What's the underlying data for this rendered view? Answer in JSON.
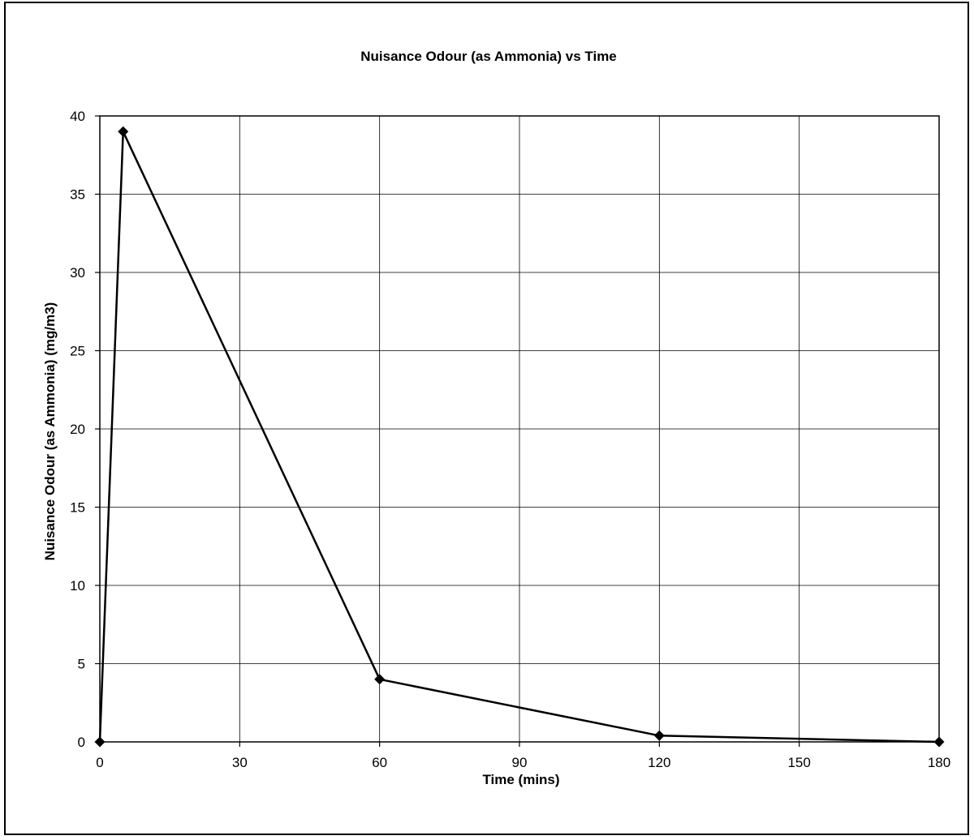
{
  "chart_data": {
    "type": "line",
    "title": "Nuisance Odour (as Ammonia) vs Time",
    "xlabel": "Time (mins)",
    "ylabel": "Nuisance Odour (as Ammonia) (mg/m3)",
    "xlim": [
      0,
      180
    ],
    "ylim": [
      0,
      40
    ],
    "xticks": [
      0,
      30,
      60,
      90,
      120,
      150,
      180
    ],
    "yticks": [
      0,
      5,
      10,
      15,
      20,
      25,
      30,
      35,
      40
    ],
    "xtick_labels": [
      "0",
      "30",
      "60",
      "90",
      "120",
      "150",
      "180"
    ],
    "ytick_labels": [
      "0",
      "5",
      "10",
      "15",
      "20",
      "25",
      "30",
      "35",
      "40"
    ],
    "grid": true,
    "legend": "none",
    "series": [
      {
        "x": [
          0,
          5,
          60,
          120,
          180
        ],
        "y": [
          0,
          39,
          4,
          0.4,
          0
        ]
      }
    ],
    "line_color": "#000000",
    "marker": "diamond"
  }
}
